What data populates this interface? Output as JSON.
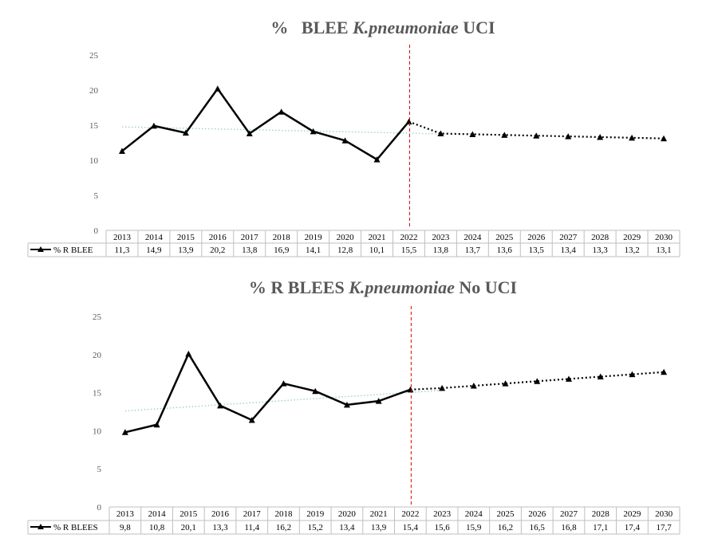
{
  "chart_data": [
    {
      "type": "line",
      "title": {
        "prefix": "%   BLEE ",
        "italic": "K.pneumoniae",
        "suffix": " UCI"
      },
      "categories": [
        "2013",
        "2014",
        "2015",
        "2016",
        "2017",
        "2018",
        "2019",
        "2020",
        "2021",
        "2022",
        "2023",
        "2024",
        "2025",
        "2026",
        "2027",
        "2028",
        "2029",
        "2030"
      ],
      "series": [
        {
          "name": "% R  BLEE",
          "values": [
            11.3,
            14.9,
            13.9,
            20.2,
            13.8,
            16.9,
            14.1,
            12.8,
            10.1,
            15.5,
            13.8,
            13.7,
            13.6,
            13.5,
            13.4,
            13.3,
            13.2,
            13.1
          ]
        }
      ],
      "value_labels": [
        "11,3",
        "14,9",
        "13,9",
        "20,2",
        "13,8",
        "16,9",
        "14,1",
        "12,8",
        "10,1",
        "15,5",
        "13,8",
        "13,7",
        "13,6",
        "13,5",
        "13,4",
        "13,3",
        "13,2",
        "13,1"
      ],
      "observed_through": "2022",
      "forecast_style": "dotted",
      "trendline": {
        "start": 14.75,
        "end": 13.75,
        "color": "#9fd5d1",
        "style": "dotted"
      },
      "reference_line": {
        "at": "2022",
        "color": "#e00000",
        "style": "dashed"
      },
      "yticks": [
        "0",
        "5",
        "10",
        "15",
        "20",
        "25"
      ],
      "ylim": [
        0,
        25
      ],
      "line_color": "#000000",
      "data_table": true
    },
    {
      "type": "line",
      "title": {
        "prefix": "% R BLEES ",
        "italic": "K.pneumoniae",
        "suffix": " No UCI"
      },
      "categories": [
        "2013",
        "2014",
        "2015",
        "2016",
        "2017",
        "2018",
        "2019",
        "2020",
        "2021",
        "2022",
        "2023",
        "2024",
        "2025",
        "2026",
        "2027",
        "2028",
        "2029",
        "2030"
      ],
      "series": [
        {
          "name": "% R BLEES",
          "values": [
            9.8,
            10.8,
            20.1,
            13.3,
            11.4,
            16.2,
            15.2,
            13.4,
            13.9,
            15.4,
            15.6,
            15.9,
            16.2,
            16.5,
            16.8,
            17.1,
            17.4,
            17.7
          ]
        }
      ],
      "value_labels": [
        "9,8",
        "10,8",
        "20,1",
        "13,3",
        "11,4",
        "16,2",
        "15,2",
        "13,4",
        "13,9",
        "15,4",
        "15,6",
        "15,9",
        "16,2",
        "16,5",
        "16,8",
        "17,1",
        "17,4",
        "17,7"
      ],
      "observed_through": "2022",
      "forecast_style": "dotted",
      "trendline": {
        "start": 12.6,
        "end": 15.3,
        "color": "#9fd5d1",
        "style": "dotted"
      },
      "reference_line": {
        "at": "2022",
        "color": "#e00000",
        "style": "dashed"
      },
      "yticks": [
        "0",
        "5",
        "10",
        "15",
        "20",
        "25"
      ],
      "ylim": [
        0,
        25
      ],
      "line_color": "#000000",
      "data_table": true
    }
  ]
}
